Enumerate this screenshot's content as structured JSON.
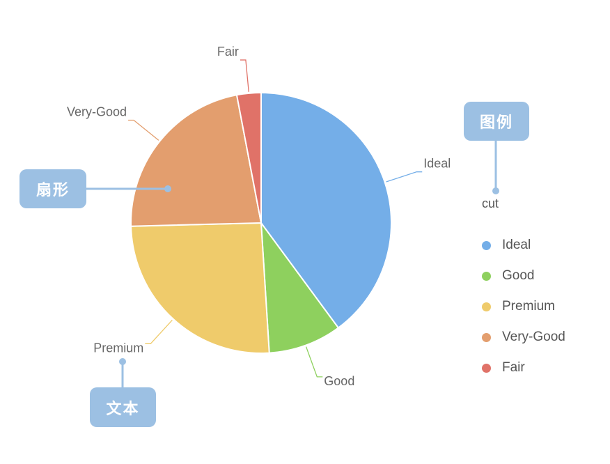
{
  "chart_data": {
    "type": "pie",
    "categories": [
      "Ideal",
      "Good",
      "Premium",
      "Very-Good",
      "Fair"
    ],
    "values": [
      39.9,
      9.1,
      25.6,
      22.4,
      3.0
    ],
    "colors": [
      "#74aee8",
      "#8ed05e",
      "#efcb6b",
      "#e39e6e",
      "#e07268"
    ]
  },
  "legend": {
    "title": "cut",
    "items": [
      {
        "label": "Ideal",
        "color": "#74aee8"
      },
      {
        "label": "Good",
        "color": "#8ed05e"
      },
      {
        "label": "Premium",
        "color": "#efcb6b"
      },
      {
        "label": "Very-Good",
        "color": "#e39e6e"
      },
      {
        "label": "Fair",
        "color": "#e07268"
      }
    ]
  },
  "callouts": {
    "legend": "图例",
    "sector": "扇形",
    "text": "文本"
  },
  "callout_color": "#9cc0e3"
}
